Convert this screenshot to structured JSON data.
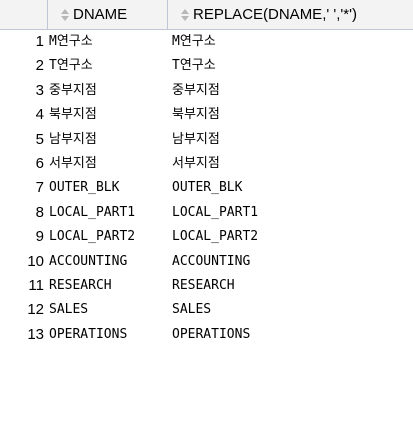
{
  "columns": {
    "row_num": "",
    "dname": "DNAME",
    "replace": "REPLACE(DNAME,' ','*')"
  },
  "rows": [
    {
      "n": "1",
      "dname": "M연구소",
      "replace": "M연구소"
    },
    {
      "n": "2",
      "dname": "T연구소",
      "replace": "T연구소"
    },
    {
      "n": "3",
      "dname": "중부지점",
      "replace": "중부지점"
    },
    {
      "n": "4",
      "dname": "북부지점",
      "replace": "북부지점"
    },
    {
      "n": "5",
      "dname": "남부지점",
      "replace": "남부지점"
    },
    {
      "n": "6",
      "dname": "서부지점",
      "replace": "서부지점"
    },
    {
      "n": "7",
      "dname": "OUTER_BLK",
      "replace": "OUTER_BLK"
    },
    {
      "n": "8",
      "dname": "LOCAL_PART1",
      "replace": "LOCAL_PART1"
    },
    {
      "n": "9",
      "dname": "LOCAL_PART2",
      "replace": "LOCAL_PART2"
    },
    {
      "n": "10",
      "dname": "ACCOUNTING",
      "replace": "ACCOUNTING"
    },
    {
      "n": "11",
      "dname": "RESEARCH",
      "replace": "RESEARCH"
    },
    {
      "n": "12",
      "dname": "SALES",
      "replace": "SALES"
    },
    {
      "n": "13",
      "dname": "OPERATIONS",
      "replace": "OPERATIONS"
    }
  ]
}
